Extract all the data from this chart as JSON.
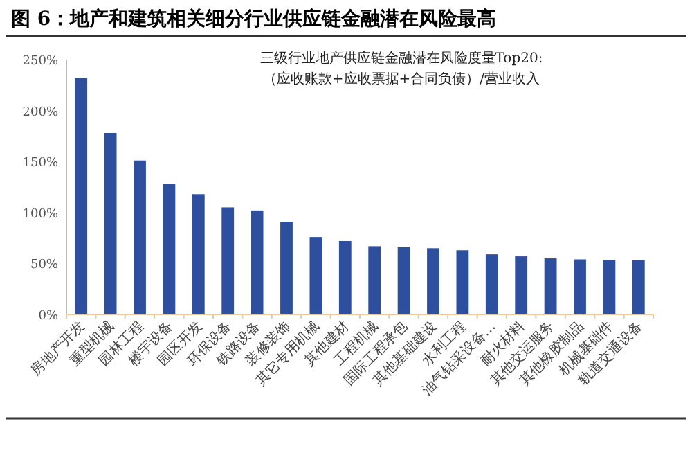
{
  "chart_data": {
    "type": "bar",
    "title": "图 6：地产和建筑相关细分行业供应链金融潜在风险最高",
    "subtitle": "三级行业地产供应链金融潜在风险度量Top20:",
    "annotations": [
      "（应收账款+应收票据+合同负债）/营业收入"
    ],
    "categories": [
      "房地产开发",
      "重型机械",
      "园林工程",
      "楼宇设备",
      "园区开发",
      "环保设备",
      "铁路设备",
      "装修装饰",
      "其它专用机械",
      "其他建材",
      "工程机械",
      "国际工程承包",
      "其他基础建设",
      "水利工程",
      "油气钻采设备…",
      "耐火材料",
      "其他交运服务",
      "其他橡胶制品",
      "机械基础件",
      "轨道交通设备"
    ],
    "values": [
      232,
      178,
      151,
      128,
      118,
      105,
      102,
      91,
      76,
      72,
      67,
      66,
      65,
      63,
      59,
      57,
      55,
      54,
      53,
      53
    ],
    "color": "#2e4f9e",
    "ylim": [
      0,
      250
    ],
    "yticks": [
      {
        "value": 0,
        "label": "0%"
      },
      {
        "value": 50,
        "label": "50%"
      },
      {
        "value": 100,
        "label": "100%"
      },
      {
        "value": 150,
        "label": "150%"
      },
      {
        "value": 200,
        "label": "200%"
      },
      {
        "value": 250,
        "label": "250%"
      }
    ]
  }
}
